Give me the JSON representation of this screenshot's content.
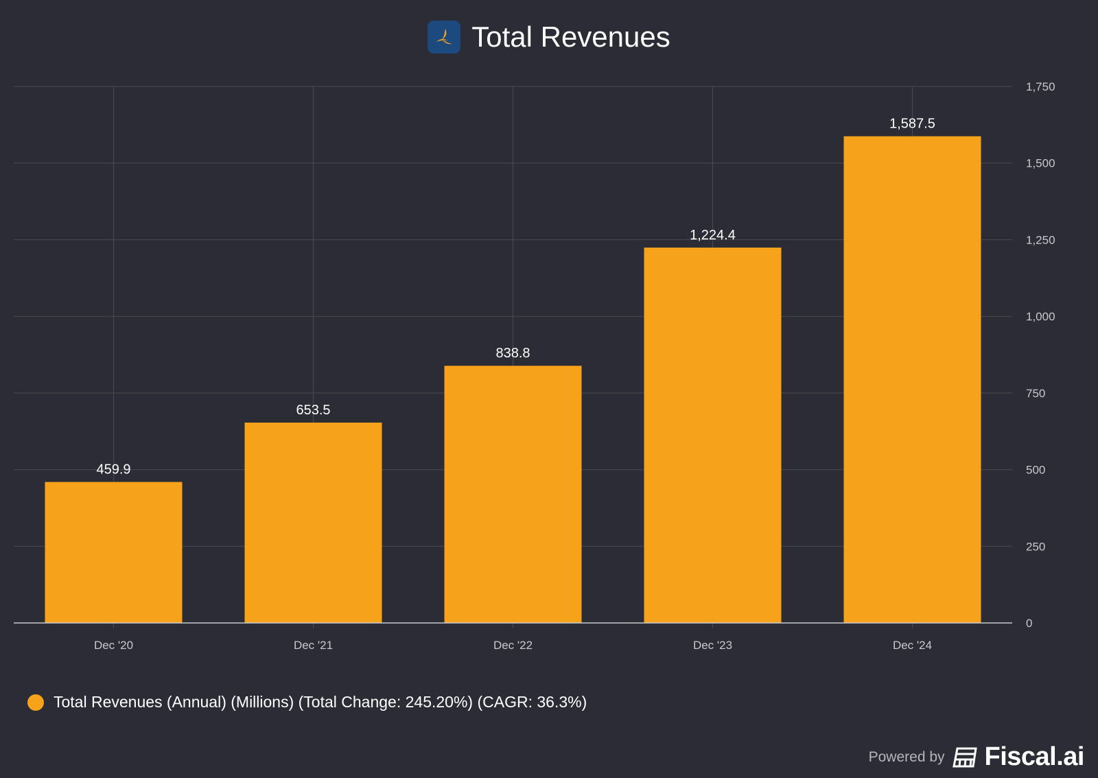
{
  "header": {
    "title": "Total Revenues",
    "logo_icon": "company-logo-icon"
  },
  "chart_data": {
    "type": "bar",
    "title": "Total Revenues",
    "categories": [
      "Dec '20",
      "Dec '21",
      "Dec '22",
      "Dec '23",
      "Dec '24"
    ],
    "values": [
      459.9,
      653.5,
      838.8,
      1224.4,
      1587.5
    ],
    "value_labels": [
      "459.9",
      "653.5",
      "838.8",
      "1,224.4",
      "1,587.5"
    ],
    "ylim": [
      0,
      1750
    ],
    "yticks": [
      0,
      250,
      500,
      750,
      1000,
      1250,
      1500,
      1750
    ],
    "ytick_labels": [
      "0",
      "250",
      "500",
      "750",
      "1,000",
      "1,250",
      "1,500",
      "1,750"
    ],
    "yaxis_position": "right",
    "grid": true,
    "color": "#f7a21b",
    "legend": {
      "placement": "bottom-left",
      "label": "Total Revenues (Annual) (Millions) (Total Change: 245.20%) (CAGR: 36.3%)"
    }
  },
  "footer": {
    "powered_by": "Powered by",
    "brand": "Fiscal.ai"
  }
}
